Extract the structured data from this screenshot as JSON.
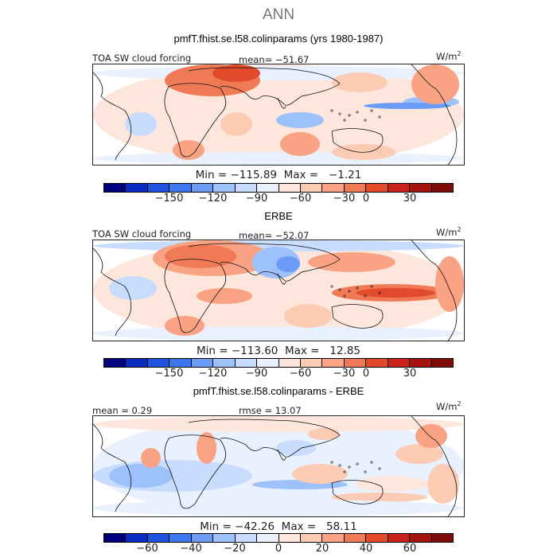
{
  "season": "ANN",
  "units_base": "W/m",
  "units_exp": "2",
  "panels": [
    {
      "title": "pmfT.fhist.se.l58.colinparams (yrs 1980-1987)",
      "left_label": "TOA SW cloud forcing",
      "stat_label": "mean= −51.67",
      "minmax": "Min = −115.89  Max =   −1.21",
      "colorbar_ticks": [
        "−150",
        "−120",
        "−90",
        "−60",
        "−30",
        "0",
        "30"
      ],
      "map": "model"
    },
    {
      "title": "ERBE",
      "left_label": "TOA SW cloud forcing",
      "stat_label": "mean= −52.07",
      "minmax": "Min = −113.60  Max =   12.85",
      "colorbar_ticks": [
        "−150",
        "−120",
        "−90",
        "−60",
        "−30",
        "0",
        "30"
      ],
      "map": "obs"
    },
    {
      "title": "pmfT.fhist.se.l58.colinparams - ERBE",
      "left_label": "mean =   0.29",
      "stat_label": "rmse =  13.07",
      "minmax": "Min = −42.26  Max =   58.11",
      "colorbar_ticks": [
        "−60",
        "−40",
        "−20",
        "0",
        "20",
        "40",
        "60"
      ],
      "map": "diff"
    }
  ],
  "colors": {
    "scale": [
      "#00007f",
      "#0a2bbf",
      "#1f52e0",
      "#3d78f0",
      "#6a9cf7",
      "#9cc1fb",
      "#c8dcfd",
      "#e9f1fe",
      "#fde7dc",
      "#fccbb4",
      "#f9a384",
      "#f07a55",
      "#e24a2c",
      "#c8231a",
      "#a6130f",
      "#7f0a07"
    ]
  }
}
